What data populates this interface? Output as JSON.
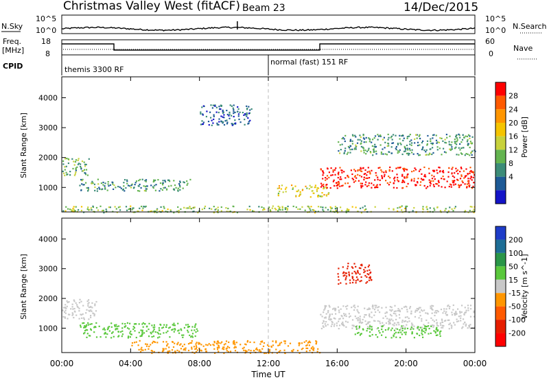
{
  "header": {
    "title": "Christmas Valley West (fitACF)",
    "beam": "Beam 23",
    "date": "14/Dec/2015"
  },
  "noise_panel": {
    "left_label": "N.Sky",
    "right_label": "N.Search",
    "left_ticks": [
      "10^5",
      "10^0"
    ],
    "right_ticks": [
      "10^5",
      "10^0"
    ]
  },
  "freq_panel": {
    "left_label": "Freq.",
    "left_unit": "[MHz]",
    "right_label": "Nave",
    "left_ticks": [
      "18",
      "8"
    ],
    "right_ticks": [
      "60",
      "0"
    ]
  },
  "cpid_panel": {
    "label": "CPID",
    "modes": [
      {
        "name": "themis 3300 RF",
        "start_hour": 0
      },
      {
        "name": "normal (fast) 151 RF",
        "start_hour": 12
      }
    ]
  },
  "power_panel": {
    "ylabel": "Slant Range [km]",
    "yticks": [
      "1000",
      "2000",
      "3000",
      "4000"
    ],
    "colorbar_label": "Power [dB]",
    "colorbar": {
      "ticks": [
        "28",
        "24",
        "20",
        "16",
        "12",
        "8",
        "4"
      ],
      "colors": [
        "#ff0000",
        "#ff5a00",
        "#ff9600",
        "#f5c400",
        "#c8d23c",
        "#64b450",
        "#3c8c78",
        "#1e5a96",
        "#1414c8"
      ]
    }
  },
  "velocity_panel": {
    "ylabel": "Slant Range [km]",
    "yticks": [
      "1000",
      "2000",
      "3000",
      "4000"
    ],
    "colorbar_label": "Velocity [m s^-1]",
    "colorbar": {
      "ticks": [
        "200",
        "100",
        "50",
        "15",
        "-15",
        "-50",
        "-100",
        "-200"
      ],
      "colors": [
        "#1e3cc8",
        "#1e6e96",
        "#2a9648",
        "#5ac83c",
        "#c8c8c8",
        "#ff9600",
        "#ff5a00",
        "#e61e00",
        "#ff0000"
      ]
    }
  },
  "x_axis": {
    "ticks": [
      "00:00",
      "04:00",
      "08:00",
      "12:00",
      "16:00",
      "20:00",
      "00:00"
    ],
    "label": "Time UT"
  },
  "chart_data": {
    "type": "heatmap",
    "title": "Christmas Valley West (fitACF)",
    "xlabel": "Time UT",
    "ylabel": "Slant Range [km]",
    "xlim_hours": [
      0,
      24
    ],
    "ylim_km": [
      180,
      4700
    ],
    "power_regions": [
      {
        "t0": 0.0,
        "t1": 1.6,
        "r0": 1400,
        "r1": 2000,
        "level": 12
      },
      {
        "t0": 1.0,
        "t1": 7.5,
        "r0": 900,
        "r1": 1300,
        "level": 10
      },
      {
        "t0": 8.0,
        "t1": 11.0,
        "r0": 3100,
        "r1": 3800,
        "level": 6
      },
      {
        "t0": 12.5,
        "t1": 15.5,
        "r0": 700,
        "r1": 1100,
        "level": 18
      },
      {
        "t0": 15.0,
        "t1": 24.0,
        "r0": 1000,
        "r1": 1700,
        "level": 30
      },
      {
        "t0": 16.0,
        "t1": 24.0,
        "r0": 2100,
        "r1": 2800,
        "level": 10
      },
      {
        "t0": 0.0,
        "t1": 24.0,
        "r0": 180,
        "r1": 400,
        "level": 14
      }
    ],
    "velocity_regions": [
      {
        "t0": 0.0,
        "t1": 2.0,
        "r0": 1300,
        "r1": 2000,
        "v": 0
      },
      {
        "t0": 1.0,
        "t1": 8.0,
        "r0": 700,
        "r1": 1200,
        "v": 30
      },
      {
        "t0": 4.0,
        "t1": 15.0,
        "r0": 180,
        "r1": 600,
        "v": -30
      },
      {
        "t0": 15.0,
        "t1": 24.0,
        "r0": 1000,
        "r1": 1800,
        "v": 0
      },
      {
        "t0": 16.0,
        "t1": 18.0,
        "r0": 2500,
        "r1": 3200,
        "v": -150
      },
      {
        "t0": 17.0,
        "t1": 22.0,
        "r0": 700,
        "r1": 1100,
        "v": 30
      }
    ]
  }
}
